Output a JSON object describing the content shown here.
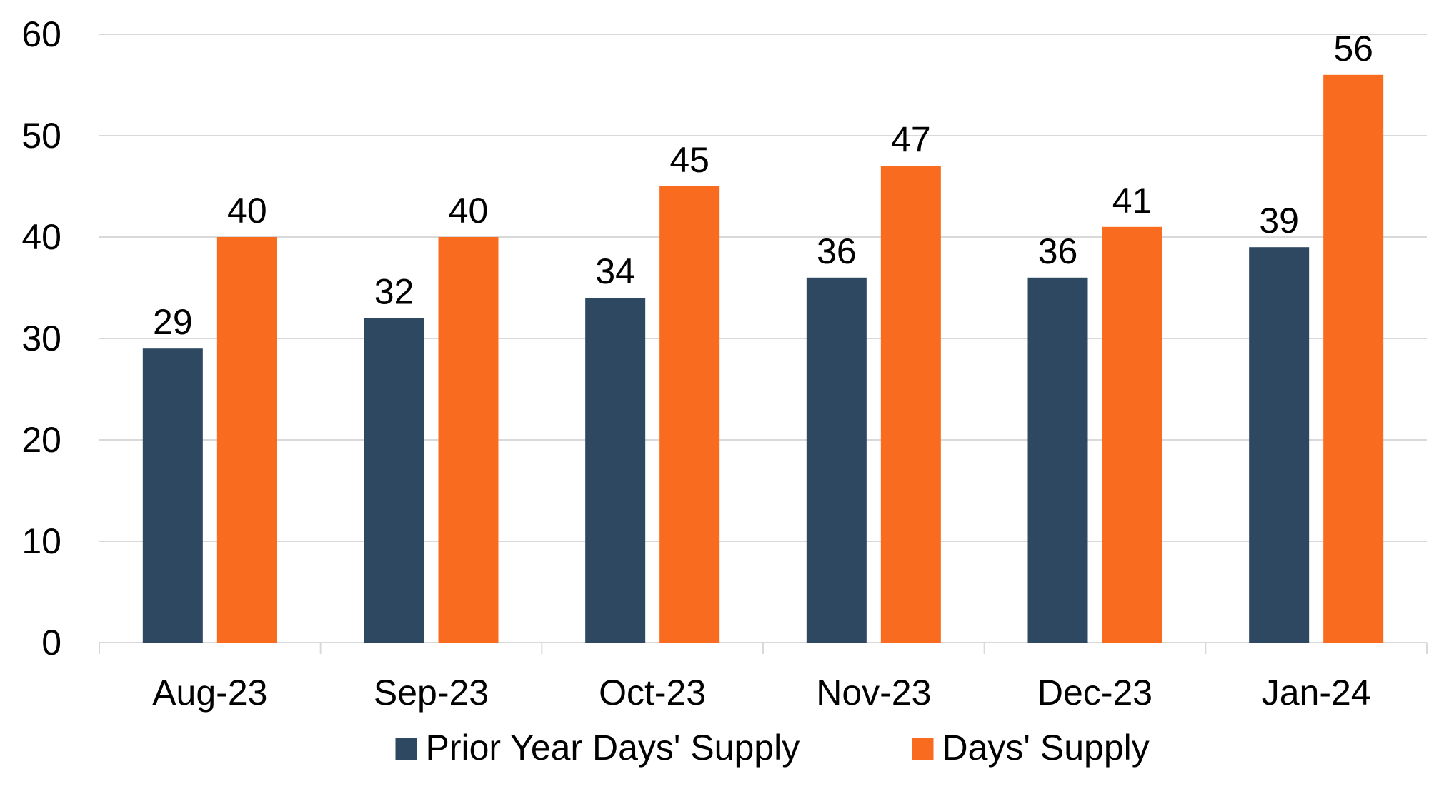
{
  "chart_data": {
    "type": "bar",
    "categories": [
      "Aug-23",
      "Sep-23",
      "Oct-23",
      "Nov-23",
      "Dec-23",
      "Jan-24"
    ],
    "series": [
      {
        "name": "Prior Year Days' Supply",
        "values": [
          29,
          32,
          34,
          36,
          36,
          39
        ],
        "color": "#2E4862"
      },
      {
        "name": "Days' Supply",
        "values": [
          40,
          40,
          45,
          47,
          41,
          56
        ],
        "color": "#F96B1E"
      }
    ],
    "yticks": [
      0,
      10,
      20,
      30,
      40,
      50,
      60
    ],
    "ylim": [
      0,
      60
    ],
    "grid": true,
    "gridline_color": "#D9D9D9",
    "data_labels": true,
    "legend_position": "bottom",
    "title": "",
    "xlabel": "",
    "ylabel": ""
  }
}
